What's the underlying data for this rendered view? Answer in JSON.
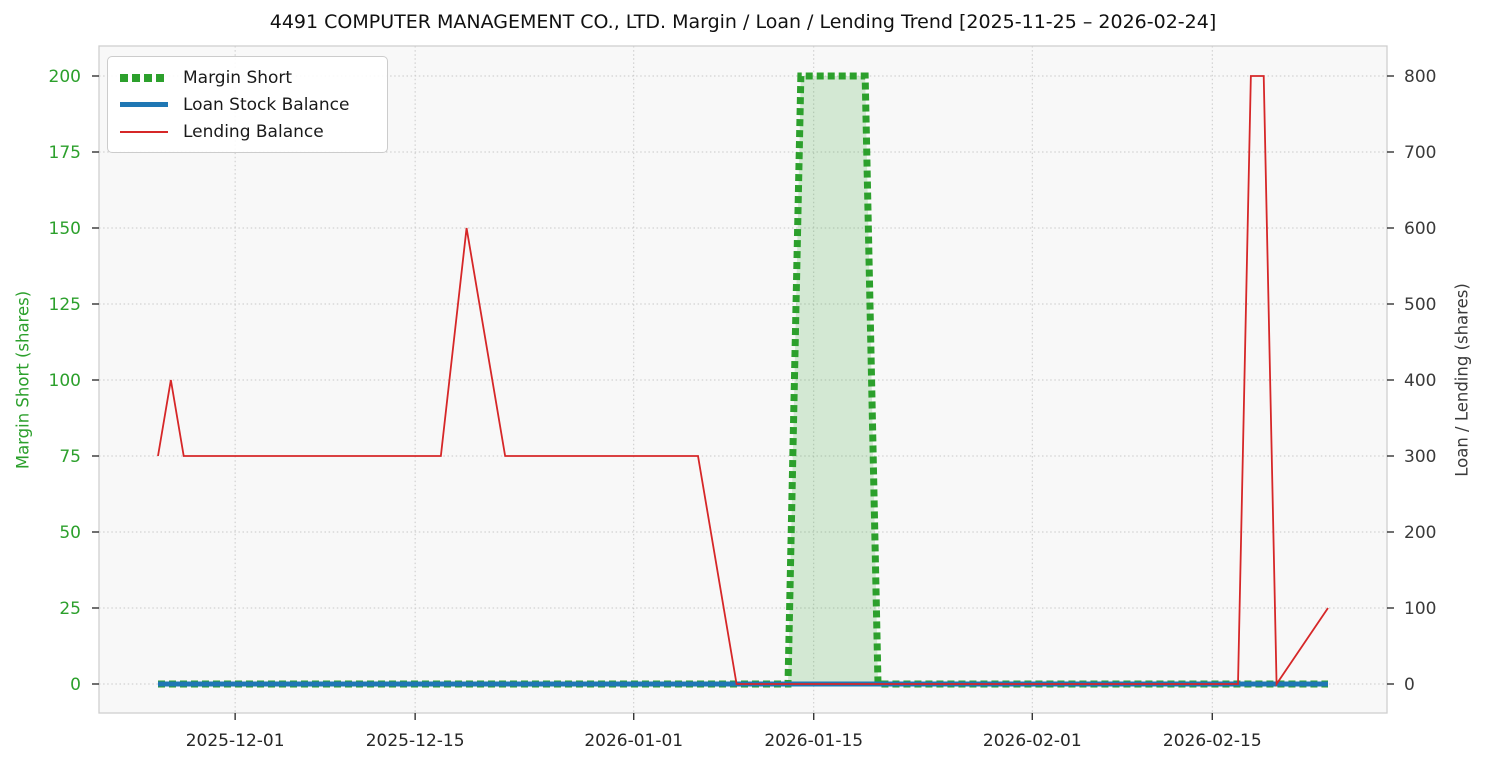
{
  "chart_data": {
    "type": "line",
    "title": "4491 COMPUTER MANAGEMENT CO., LTD. Margin / Loan / Lending Trend [2025-11-25 – 2026-02-24]",
    "x_range": [
      "2025-11-25",
      "2026-02-24"
    ],
    "x_ticks": [
      "2025-12-01",
      "2025-12-15",
      "2026-01-01",
      "2026-01-15",
      "2026-02-01",
      "2026-02-15"
    ],
    "grid": true,
    "legend_position": "upper left",
    "colors": {
      "figure_background": "#ffffff",
      "plot_background": "#f8f8f8",
      "grid": "#c9c9c9",
      "spine": "#cfcfcf",
      "tick_mark": "#333333",
      "x_tick_text": "#262626"
    },
    "left_axis": {
      "label": "Margin Short (shares)",
      "color": "#2ca02c",
      "min": 0,
      "max": 200,
      "ticks": [
        0,
        25,
        50,
        75,
        100,
        125,
        150,
        175,
        200
      ]
    },
    "right_axis": {
      "label": "Loan / Lending (shares)",
      "color": "#3a3a3a",
      "min": 0,
      "max": 800,
      "ticks": [
        0,
        100,
        200,
        300,
        400,
        500,
        600,
        700,
        800
      ]
    },
    "series": [
      {
        "name": "Margin Short",
        "axis": "left",
        "color": "#2ca02c",
        "line_width": 7,
        "line_style": "dotted",
        "fill": true,
        "fill_color": "rgba(44,160,44,0.18)",
        "points": [
          [
            "2025-11-25",
            0
          ],
          [
            "2026-01-13",
            0
          ],
          [
            "2026-01-14",
            200
          ],
          [
            "2026-01-19",
            200
          ],
          [
            "2026-01-20",
            0
          ],
          [
            "2026-02-24",
            0
          ]
        ]
      },
      {
        "name": "Loan Stock Balance",
        "axis": "right",
        "color": "#1f77b4",
        "line_width": 5,
        "line_style": "solid",
        "fill": false,
        "points": [
          [
            "2025-11-25",
            0
          ],
          [
            "2026-02-24",
            0
          ]
        ]
      },
      {
        "name": "Lending Balance",
        "axis": "right",
        "color": "#d62728",
        "line_width": 1.8,
        "line_style": "solid",
        "fill": false,
        "points": [
          [
            "2025-11-25",
            300
          ],
          [
            "2025-11-26",
            400
          ],
          [
            "2025-11-27",
            300
          ],
          [
            "2025-12-17",
            300
          ],
          [
            "2025-12-19",
            600
          ],
          [
            "2025-12-22",
            300
          ],
          [
            "2026-01-06",
            300
          ],
          [
            "2026-01-09",
            0
          ],
          [
            "2026-02-17",
            0
          ],
          [
            "2026-02-18",
            800
          ],
          [
            "2026-02-19",
            800
          ],
          [
            "2026-02-20",
            0
          ],
          [
            "2026-02-24",
            100
          ]
        ]
      }
    ]
  }
}
